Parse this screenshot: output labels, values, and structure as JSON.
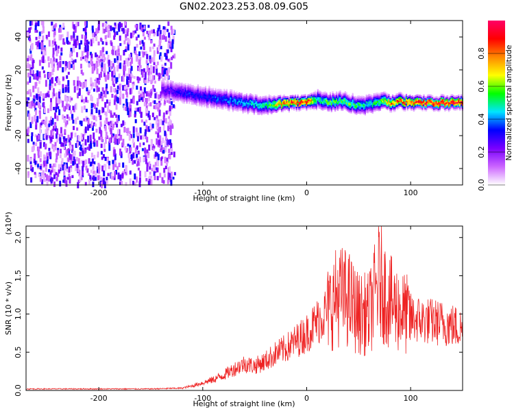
{
  "title": "GN02.2023.253.08.09.G05",
  "chart_data": [
    {
      "type": "heatmap",
      "xlabel": "Height of straight line (km)",
      "ylabel": "Frequency (Hz)",
      "xlim": [
        -270,
        150
      ],
      "ylim": [
        -50,
        50
      ],
      "x_ticks": [
        -200,
        -100,
        0,
        100
      ],
      "y_ticks": [
        -40,
        -20,
        0,
        20,
        40
      ],
      "colorbar": {
        "label": "Normalized spectral amplitude",
        "range": [
          0.0,
          1.0
        ],
        "ticks": [
          "0.0",
          "0.2",
          "0.4",
          "0.6",
          "0.8"
        ],
        "colors": [
          "#ffffff",
          "#cc66ff",
          "#7a00ff",
          "#0000ff",
          "#00e5ff",
          "#00ff00",
          "#ffff00",
          "#ff8800",
          "#ff0000",
          "#ff0066"
        ]
      },
      "ridge": {
        "x": [
          -140,
          -120,
          -100,
          -80,
          -60,
          -40,
          -20,
          0,
          10,
          20,
          30,
          40,
          50,
          60,
          70,
          80,
          90,
          100,
          120,
          150
        ],
        "freq": [
          8,
          6,
          4,
          2,
          0,
          -2,
          0,
          0,
          2,
          0,
          1,
          0,
          -2,
          -1,
          1,
          0,
          1,
          0,
          0,
          0
        ],
        "amplitude": [
          0.25,
          0.35,
          0.35,
          0.4,
          0.45,
          0.5,
          0.9,
          0.95,
          0.5,
          0.6,
          0.55,
          0.6,
          0.55,
          0.5,
          0.6,
          0.8,
          0.85,
          0.9,
          1.0,
          0.95
        ]
      },
      "noise_region_x": [
        -270,
        -125
      ]
    },
    {
      "type": "line",
      "xlabel": "Height of straight line (km)",
      "ylabel": "SNR (10 * v/v)",
      "y_multiplier": "(x10⁴)",
      "xlim": [
        -270,
        150
      ],
      "ylim": [
        0,
        2.15
      ],
      "x_ticks": [
        -200,
        -100,
        0,
        100
      ],
      "y_ticks": [
        "0.0",
        "0.5",
        "1.0",
        "1.5",
        "2.0"
      ],
      "color": "#ee2222",
      "series": [
        {
          "x": [
            -270,
            -200,
            -150,
            -120,
            -110,
            -100,
            -90,
            -80,
            -70,
            -60,
            -50,
            -40,
            -30,
            -20,
            -10,
            0,
            10,
            20,
            30,
            40,
            50,
            60,
            70,
            80,
            90,
            100,
            110,
            120,
            130,
            140,
            150
          ],
          "y": [
            0.02,
            0.02,
            0.02,
            0.03,
            0.06,
            0.1,
            0.14,
            0.2,
            0.28,
            0.35,
            0.32,
            0.38,
            0.48,
            0.55,
            0.65,
            0.75,
            0.9,
            1.05,
            1.25,
            1.2,
            1.0,
            1.0,
            1.45,
            1.15,
            1.05,
            0.95,
            0.92,
            0.9,
            0.88,
            0.85,
            0.8
          ]
        }
      ]
    }
  ]
}
